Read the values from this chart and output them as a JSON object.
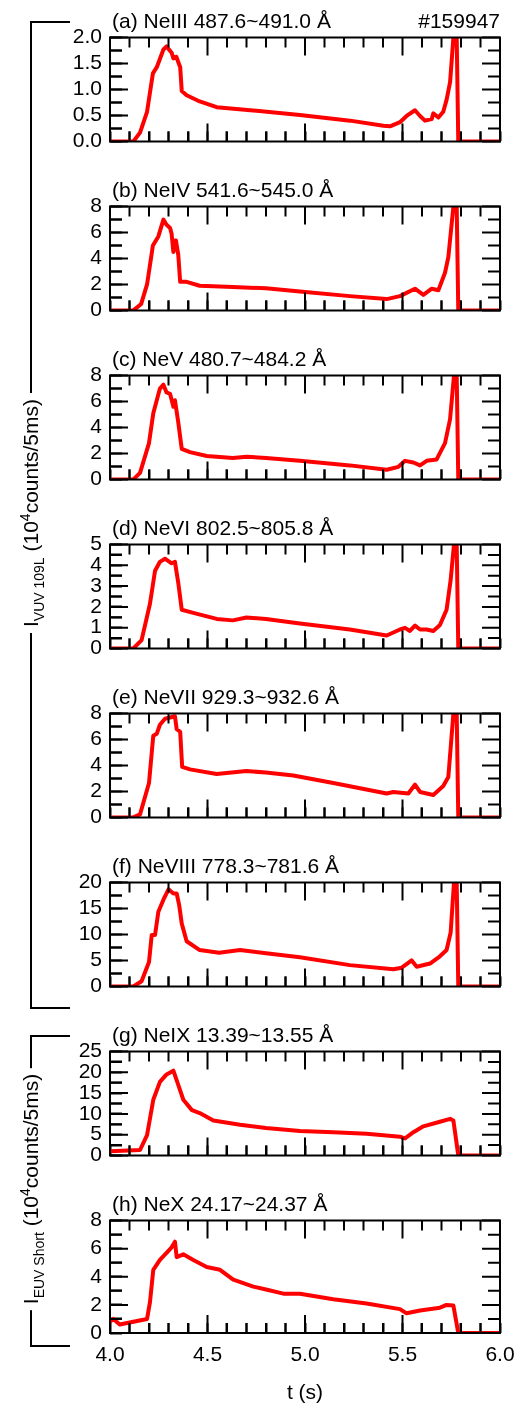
{
  "chart_data": [
    {
      "type": "line",
      "title": "(a) NeIII 487.6~491.0 Å",
      "annotations": [
        "#159947"
      ],
      "color": "#ff0000",
      "marker": "none",
      "tick_labels": "y",
      "x": [
        4.0,
        4.12,
        4.154,
        4.19,
        4.22,
        4.24,
        4.274,
        4.29,
        4.316,
        4.325,
        4.34,
        4.36,
        4.368,
        4.393,
        4.46,
        4.547,
        4.72,
        4.974,
        5.231,
        5.402,
        5.436,
        5.487,
        5.521,
        5.564,
        5.59,
        5.615,
        5.65,
        5.658,
        5.684,
        5.709,
        5.726,
        5.744,
        5.761,
        5.778,
        5.786,
        6.0
      ],
      "values": [
        0,
        0,
        0.17,
        0.57,
        1.31,
        1.43,
        1.77,
        1.83,
        1.71,
        1.6,
        1.63,
        1.43,
        0.97,
        0.89,
        0.77,
        0.66,
        0.6,
        0.51,
        0.4,
        0.3,
        0.29,
        0.37,
        0.49,
        0.6,
        0.49,
        0.4,
        0.43,
        0.54,
        0.46,
        0.57,
        0.8,
        1.14,
        2.0,
        2.0,
        0,
        0
      ],
      "xlim": [
        4,
        6
      ],
      "xticks": [
        4,
        {
          "value": 4.1,
          "label": null
        },
        {
          "value": 4.2,
          "label": null
        },
        {
          "value": 4.3,
          "label": null
        },
        {
          "value": 4.4,
          "label": null
        },
        4.5,
        {
          "value": 4.6,
          "label": null
        },
        {
          "value": 4.7,
          "label": null
        },
        {
          "value": 4.8,
          "label": null
        },
        {
          "value": 4.9,
          "label": null
        },
        5,
        {
          "value": 5.1,
          "label": null
        },
        {
          "value": 5.2,
          "label": null
        },
        {
          "value": 5.3,
          "label": null
        },
        {
          "value": 5.4,
          "label": null
        },
        5.5,
        {
          "value": 5.6,
          "label": null
        },
        {
          "value": 5.7,
          "label": null
        },
        {
          "value": 5.8,
          "label": null
        },
        {
          "value": 5.9,
          "label": null
        },
        6
      ],
      "ylim": [
        0,
        2
      ],
      "yticks": [
        {
          "value": 0,
          "label": "0.0"
        },
        {
          "value": 0.25,
          "label": null
        },
        {
          "value": 0.5,
          "label": "0.5"
        },
        {
          "value": 0.75,
          "label": null
        },
        {
          "value": 1,
          "label": "1.0"
        },
        {
          "value": 1.25,
          "label": null
        },
        {
          "value": 1.5,
          "label": "1.5"
        },
        {
          "value": 1.75,
          "label": null
        },
        {
          "value": 2,
          "label": "2.0"
        }
      ]
    },
    {
      "type": "line",
      "title": "(b) NeIV 541.6~545.0 Å",
      "color": "#ff0000",
      "marker": "none",
      "tick_labels": "y",
      "x": [
        4.0,
        4.12,
        4.16,
        4.19,
        4.22,
        4.248,
        4.274,
        4.29,
        4.308,
        4.316,
        4.325,
        4.338,
        4.35,
        4.36,
        4.393,
        4.46,
        4.63,
        4.8,
        4.974,
        5.23,
        5.419,
        5.487,
        5.564,
        5.607,
        5.65,
        5.684,
        5.718,
        5.735,
        5.761,
        5.778,
        5.786,
        6.0
      ],
      "values": [
        0,
        0,
        0.5,
        2.0,
        5.0,
        5.7,
        7.0,
        6.6,
        6.35,
        5.9,
        4.5,
        5.4,
        4.3,
        2.2,
        2.2,
        1.9,
        1.8,
        1.7,
        1.45,
        1.1,
        0.87,
        1.1,
        1.67,
        1.2,
        1.67,
        1.55,
        2.9,
        4.1,
        8,
        8,
        0,
        0
      ],
      "xlim": [
        4,
        6
      ],
      "xticks": [
        4,
        {
          "value": 4.1,
          "label": null
        },
        {
          "value": 4.2,
          "label": null
        },
        {
          "value": 4.3,
          "label": null
        },
        {
          "value": 4.4,
          "label": null
        },
        4.5,
        {
          "value": 4.6,
          "label": null
        },
        {
          "value": 4.7,
          "label": null
        },
        {
          "value": 4.8,
          "label": null
        },
        {
          "value": 4.9,
          "label": null
        },
        5,
        {
          "value": 5.1,
          "label": null
        },
        {
          "value": 5.2,
          "label": null
        },
        {
          "value": 5.3,
          "label": null
        },
        {
          "value": 5.4,
          "label": null
        },
        5.5,
        {
          "value": 5.6,
          "label": null
        },
        {
          "value": 5.7,
          "label": null
        },
        {
          "value": 5.8,
          "label": null
        },
        {
          "value": 5.9,
          "label": null
        },
        6
      ],
      "ylim": [
        0,
        8
      ],
      "yticks": [
        0,
        {
          "value": 1,
          "label": null
        },
        2,
        {
          "value": 3,
          "label": null
        },
        4,
        {
          "value": 5,
          "label": null
        },
        6,
        {
          "value": 7,
          "label": null
        },
        8
      ]
    },
    {
      "type": "line",
      "title": "(c) NeV 480.7~484.2 Å",
      "ylabel": "I$_{VUV 109L}$ (10$^{4}$counts/5ms)",
      "color": "#ff0000",
      "marker": "none",
      "tick_labels": "y",
      "x": [
        4.0,
        4.12,
        4.154,
        4.2,
        4.222,
        4.256,
        4.274,
        4.29,
        4.308,
        4.325,
        4.333,
        4.35,
        4.368,
        4.41,
        4.496,
        4.63,
        4.7,
        4.8,
        4.974,
        5.23,
        5.419,
        5.479,
        5.513,
        5.556,
        5.59,
        5.624,
        5.675,
        5.718,
        5.744,
        5.764,
        5.778,
        5.786,
        6.0
      ],
      "values": [
        0,
        0,
        0.5,
        2.8,
        5.1,
        7.0,
        7.3,
        6.7,
        6.6,
        5.6,
        6.1,
        4.4,
        2.35,
        2.1,
        1.8,
        1.65,
        1.75,
        1.65,
        1.43,
        1.08,
        0.74,
        0.97,
        1.43,
        1.3,
        1.08,
        1.43,
        1.54,
        2.8,
        4.65,
        8,
        8,
        0,
        0
      ],
      "xlim": [
        4,
        6
      ],
      "xticks": [
        4,
        {
          "value": 4.1,
          "label": null
        },
        {
          "value": 4.2,
          "label": null
        },
        {
          "value": 4.3,
          "label": null
        },
        {
          "value": 4.4,
          "label": null
        },
        4.5,
        {
          "value": 4.6,
          "label": null
        },
        {
          "value": 4.7,
          "label": null
        },
        {
          "value": 4.8,
          "label": null
        },
        {
          "value": 4.9,
          "label": null
        },
        5,
        {
          "value": 5.1,
          "label": null
        },
        {
          "value": 5.2,
          "label": null
        },
        {
          "value": 5.3,
          "label": null
        },
        {
          "value": 5.4,
          "label": null
        },
        5.5,
        {
          "value": 5.6,
          "label": null
        },
        {
          "value": 5.7,
          "label": null
        },
        {
          "value": 5.8,
          "label": null
        },
        {
          "value": 5.9,
          "label": null
        },
        6
      ],
      "ylim": [
        0,
        8
      ],
      "yticks": [
        0,
        {
          "value": 1,
          "label": null
        },
        2,
        {
          "value": 3,
          "label": null
        },
        4,
        {
          "value": 5,
          "label": null
        },
        6,
        {
          "value": 7,
          "label": null
        },
        8
      ]
    },
    {
      "type": "line",
      "title": "(d) NeVI 802.5~805.8 Å",
      "color": "#ff0000",
      "marker": "none",
      "tick_labels": "y",
      "x": [
        4.0,
        4.12,
        4.162,
        4.205,
        4.231,
        4.256,
        4.282,
        4.316,
        4.333,
        4.35,
        4.368,
        4.427,
        4.547,
        4.63,
        4.7,
        4.8,
        4.974,
        5.23,
        5.419,
        5.487,
        5.513,
        5.538,
        5.564,
        5.59,
        5.624,
        5.658,
        5.692,
        5.726,
        5.747,
        5.764,
        5.778,
        5.786,
        6.0
      ],
      "values": [
        0,
        0,
        0.4,
        2.15,
        3.74,
        4.17,
        4.32,
        4.1,
        4.17,
        3.16,
        1.86,
        1.71,
        1.42,
        1.35,
        1.49,
        1.42,
        1.2,
        0.91,
        0.62,
        0.91,
        0.99,
        0.84,
        1.1,
        0.91,
        0.91,
        0.84,
        1.13,
        1.86,
        3.3,
        5,
        5,
        0,
        0
      ],
      "xlim": [
        4,
        6
      ],
      "xticks": [
        4,
        {
          "value": 4.1,
          "label": null
        },
        {
          "value": 4.2,
          "label": null
        },
        {
          "value": 4.3,
          "label": null
        },
        {
          "value": 4.4,
          "label": null
        },
        4.5,
        {
          "value": 4.6,
          "label": null
        },
        {
          "value": 4.7,
          "label": null
        },
        {
          "value": 4.8,
          "label": null
        },
        {
          "value": 4.9,
          "label": null
        },
        5,
        {
          "value": 5.1,
          "label": null
        },
        {
          "value": 5.2,
          "label": null
        },
        {
          "value": 5.3,
          "label": null
        },
        {
          "value": 5.4,
          "label": null
        },
        5.5,
        {
          "value": 5.6,
          "label": null
        },
        {
          "value": 5.7,
          "label": null
        },
        {
          "value": 5.8,
          "label": null
        },
        {
          "value": 5.9,
          "label": null
        },
        6
      ],
      "ylim": [
        0,
        5
      ],
      "yticks": [
        0,
        {
          "value": 0.5,
          "label": null
        },
        1,
        {
          "value": 1.5,
          "label": null
        },
        2,
        {
          "value": 2.5,
          "label": null
        },
        3,
        {
          "value": 3.5,
          "label": null
        },
        4,
        {
          "value": 4.5,
          "label": null
        },
        5
      ]
    },
    {
      "type": "line",
      "title": "(e) NeVII 929.3~932.6 Å",
      "color": "#ff0000",
      "marker": "none",
      "tick_labels": "y",
      "x": [
        4.0,
        4.12,
        4.154,
        4.2,
        4.222,
        4.24,
        4.256,
        4.282,
        4.308,
        4.333,
        4.342,
        4.36,
        4.37,
        4.41,
        4.547,
        4.7,
        4.8,
        4.94,
        5.145,
        5.419,
        5.453,
        5.53,
        5.564,
        5.59,
        5.658,
        5.709,
        5.735,
        5.761,
        5.778,
        5.786,
        6.0
      ],
      "values": [
        0,
        0,
        0.23,
        2.65,
        6.3,
        6.45,
        7.14,
        7.6,
        7.7,
        7.8,
        6.8,
        6.6,
        3.9,
        3.7,
        3.34,
        3.57,
        3.46,
        3.23,
        2.65,
        1.84,
        1.96,
        1.84,
        2.53,
        1.96,
        1.73,
        2.42,
        3.11,
        8,
        8,
        0,
        0
      ],
      "xlim": [
        4,
        6
      ],
      "xticks": [
        4,
        {
          "value": 4.1,
          "label": null
        },
        {
          "value": 4.2,
          "label": null
        },
        {
          "value": 4.3,
          "label": null
        },
        {
          "value": 4.4,
          "label": null
        },
        4.5,
        {
          "value": 4.6,
          "label": null
        },
        {
          "value": 4.7,
          "label": null
        },
        {
          "value": 4.8,
          "label": null
        },
        {
          "value": 4.9,
          "label": null
        },
        5,
        {
          "value": 5.1,
          "label": null
        },
        {
          "value": 5.2,
          "label": null
        },
        {
          "value": 5.3,
          "label": null
        },
        {
          "value": 5.4,
          "label": null
        },
        5.5,
        {
          "value": 5.6,
          "label": null
        },
        {
          "value": 5.7,
          "label": null
        },
        {
          "value": 5.8,
          "label": null
        },
        {
          "value": 5.9,
          "label": null
        },
        6
      ],
      "ylim": [
        0,
        8
      ],
      "yticks": [
        0,
        {
          "value": 1,
          "label": null
        },
        2,
        {
          "value": 3,
          "label": null
        },
        4,
        {
          "value": 5,
          "label": null
        },
        6,
        {
          "value": 7,
          "label": null
        },
        8
      ]
    },
    {
      "type": "line",
      "title": "(f) NeVIII 778.3~781.6 Å",
      "color": "#ff0000",
      "marker": "none",
      "tick_labels": "y",
      "x": [
        4.0,
        4.12,
        4.162,
        4.2,
        4.214,
        4.231,
        4.248,
        4.274,
        4.3,
        4.325,
        4.342,
        4.355,
        4.368,
        4.393,
        4.46,
        4.56,
        4.667,
        4.8,
        4.974,
        5.23,
        5.453,
        5.496,
        5.547,
        5.573,
        5.641,
        5.692,
        5.726,
        5.747,
        5.764,
        5.778,
        5.786,
        6.0
      ],
      "values": [
        0,
        0,
        1.0,
        4.7,
        9.9,
        9.9,
        14.4,
        16.7,
        18.7,
        17.9,
        17.9,
        15.6,
        12.1,
        8.7,
        7.0,
        6.5,
        7.0,
        6.4,
        5.6,
        4.1,
        3.3,
        3.6,
        5.0,
        3.8,
        4.4,
        5.8,
        7.0,
        10.4,
        20,
        20,
        0,
        0
      ],
      "xlim": [
        4,
        6
      ],
      "xticks": [
        4,
        {
          "value": 4.1,
          "label": null
        },
        {
          "value": 4.2,
          "label": null
        },
        {
          "value": 4.3,
          "label": null
        },
        {
          "value": 4.4,
          "label": null
        },
        4.5,
        {
          "value": 4.6,
          "label": null
        },
        {
          "value": 4.7,
          "label": null
        },
        {
          "value": 4.8,
          "label": null
        },
        {
          "value": 4.9,
          "label": null
        },
        5,
        {
          "value": 5.1,
          "label": null
        },
        {
          "value": 5.2,
          "label": null
        },
        {
          "value": 5.3,
          "label": null
        },
        {
          "value": 5.4,
          "label": null
        },
        5.5,
        {
          "value": 5.6,
          "label": null
        },
        {
          "value": 5.7,
          "label": null
        },
        {
          "value": 5.8,
          "label": null
        },
        {
          "value": 5.9,
          "label": null
        },
        6
      ],
      "ylim": [
        0,
        20
      ],
      "yticks": [
        0,
        {
          "value": 2.5,
          "label": null
        },
        5,
        {
          "value": 7.5,
          "label": null
        },
        10,
        {
          "value": 12.5,
          "label": null
        },
        15,
        {
          "value": 17.5,
          "label": null
        },
        20
      ]
    },
    {
      "type": "line",
      "title": "(g) NeIX 13.39~13.55 Å",
      "ylabel": "I$_{EUV Short}$ (10$^{4}$counts/5ms)",
      "color": "#ff0000",
      "marker": "none",
      "tick_labels": "y",
      "x": [
        4.0,
        4.154,
        4.19,
        4.222,
        4.256,
        4.29,
        4.325,
        4.35,
        4.376,
        4.42,
        4.46,
        4.53,
        4.667,
        4.8,
        4.974,
        5.145,
        5.316,
        5.487,
        5.513,
        5.556,
        5.607,
        5.692,
        5.744,
        5.761,
        5.786,
        6.0
      ],
      "values": [
        1.0,
        1.3,
        4.9,
        13.4,
        17.7,
        19.5,
        20.4,
        17,
        13.4,
        10.9,
        10.2,
        8.4,
        7.4,
        6.6,
        5.9,
        5.6,
        5.2,
        4.5,
        4.1,
        5.6,
        7.0,
        8.1,
        8.8,
        8.4,
        0,
        0
      ],
      "xlim": [
        4,
        6
      ],
      "xticks": [
        4,
        {
          "value": 4.1,
          "label": null
        },
        {
          "value": 4.2,
          "label": null
        },
        {
          "value": 4.3,
          "label": null
        },
        {
          "value": 4.4,
          "label": null
        },
        4.5,
        {
          "value": 4.6,
          "label": null
        },
        {
          "value": 4.7,
          "label": null
        },
        {
          "value": 4.8,
          "label": null
        },
        {
          "value": 4.9,
          "label": null
        },
        5,
        {
          "value": 5.1,
          "label": null
        },
        {
          "value": 5.2,
          "label": null
        },
        {
          "value": 5.3,
          "label": null
        },
        {
          "value": 5.4,
          "label": null
        },
        5.5,
        {
          "value": 5.6,
          "label": null
        },
        {
          "value": 5.7,
          "label": null
        },
        {
          "value": 5.8,
          "label": null
        },
        {
          "value": 5.9,
          "label": null
        },
        6
      ],
      "ylim": [
        0,
        25
      ],
      "yticks": [
        0,
        {
          "value": 2.5,
          "label": null
        },
        5,
        {
          "value": 7.5,
          "label": null
        },
        10,
        {
          "value": 12.5,
          "label": null
        },
        15,
        {
          "value": 17.5,
          "label": null
        },
        20,
        {
          "value": 22.5,
          "label": null
        },
        25
      ]
    },
    {
      "type": "line",
      "title": "(h) NeX 24.17~24.37 Å",
      "xlabel": "t (s)",
      "color": "#ff0000",
      "marker": "none",
      "x": [
        4.0,
        4.017,
        4.05,
        4.12,
        4.19,
        4.205,
        4.222,
        4.256,
        4.29,
        4.316,
        4.333,
        4.342,
        4.376,
        4.427,
        4.496,
        4.564,
        4.632,
        4.735,
        4.8,
        4.889,
        4.974,
        5.145,
        5.316,
        5.487,
        5.521,
        5.59,
        5.692,
        5.726,
        5.761,
        5.786,
        6.0
      ],
      "values": [
        0.8,
        1.0,
        0.6,
        0.8,
        1.0,
        2.2,
        4.5,
        5.2,
        5.7,
        6.1,
        6.5,
        5.4,
        5.6,
        5.2,
        4.7,
        4.5,
        3.8,
        3.3,
        3.1,
        2.8,
        2.8,
        2.4,
        2.1,
        1.7,
        1.4,
        1.6,
        1.8,
        2.0,
        1.95,
        0,
        0
      ],
      "xlim": [
        4,
        6
      ],
      "xticks": [
        {
          "value": 4,
          "label": "4.0"
        },
        {
          "value": 4.1,
          "label": null
        },
        {
          "value": 4.2,
          "label": null
        },
        {
          "value": 4.3,
          "label": null
        },
        {
          "value": 4.4,
          "label": null
        },
        {
          "value": 4.5,
          "label": "4.5"
        },
        {
          "value": 4.6,
          "label": null
        },
        {
          "value": 4.7,
          "label": null
        },
        {
          "value": 4.8,
          "label": null
        },
        {
          "value": 4.9,
          "label": null
        },
        {
          "value": 5,
          "label": "5.0"
        },
        {
          "value": 5.1,
          "label": null
        },
        {
          "value": 5.2,
          "label": null
        },
        {
          "value": 5.3,
          "label": null
        },
        {
          "value": 5.4,
          "label": null
        },
        {
          "value": 5.5,
          "label": "5.5"
        },
        {
          "value": 5.6,
          "label": null
        },
        {
          "value": 5.7,
          "label": null
        },
        {
          "value": 5.8,
          "label": null
        },
        {
          "value": 5.9,
          "label": null
        },
        {
          "value": 6,
          "label": "6.0"
        }
      ],
      "ylim": [
        0,
        8
      ],
      "yticks": [
        0,
        {
          "value": 1,
          "label": null
        },
        2,
        {
          "value": 3,
          "label": null
        },
        4,
        {
          "value": 5,
          "label": null
        },
        6,
        {
          "value": 7,
          "label": null
        },
        8
      ]
    }
  ]
}
